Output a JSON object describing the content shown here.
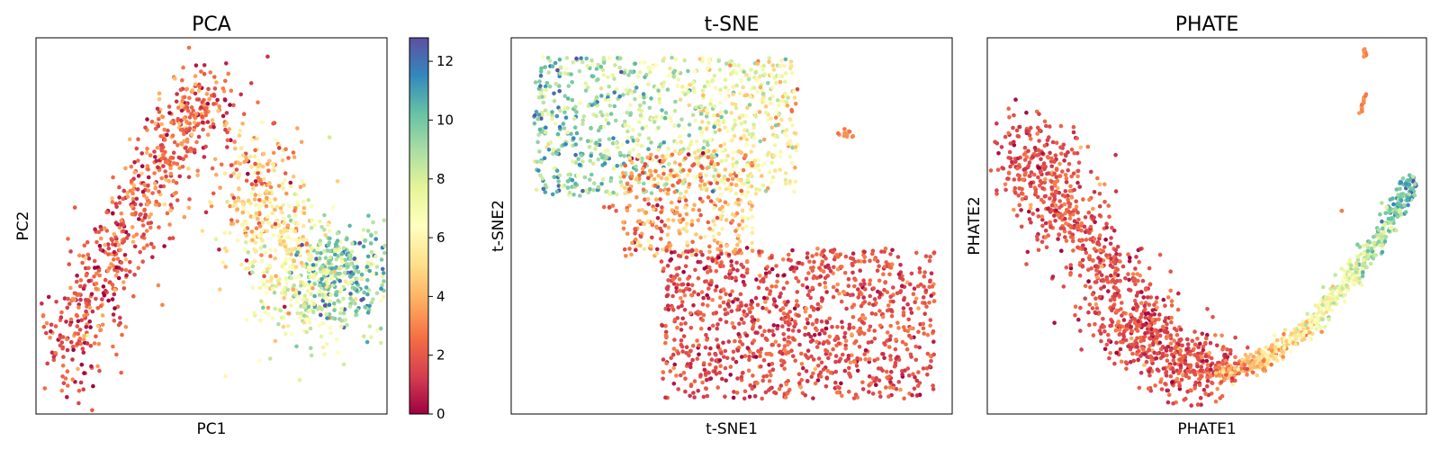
{
  "chart_data": [
    {
      "type": "scatter",
      "title": "PCA",
      "xlabel": "PC1",
      "ylabel": "PC2",
      "xticks": false,
      "yticks": false,
      "color_by": "continuous value (colorbar 0–12.8)",
      "clusters": [
        {
          "name": "left arm",
          "n": 700,
          "seed": 11,
          "curve": [
            [
              0.07,
              0.9
            ],
            [
              0.18,
              0.66
            ],
            [
              0.3,
              0.43
            ],
            [
              0.42,
              0.23
            ],
            [
              0.5,
              0.14
            ]
          ],
          "spread": 0.05,
          "cstart": 1.8,
          "cend": 2.5,
          "cjit": 1.2
        },
        {
          "name": "right lobe",
          "n": 900,
          "seed": 23,
          "curve": [
            [
              0.62,
              0.3
            ],
            [
              0.68,
              0.52
            ],
            [
              0.76,
              0.7
            ],
            [
              0.86,
              0.62
            ],
            [
              0.95,
              0.64
            ]
          ],
          "spread": 0.07,
          "cstart": 3.5,
          "cend": 10.5,
          "cjit": 1.6
        }
      ],
      "outliers": [
        [
          0.66,
          0.05,
          1.0
        ],
        [
          0.36,
          0.71,
          3.0
        ],
        [
          0.54,
          0.9,
          6.0
        ]
      ]
    },
    {
      "type": "scatter",
      "title": "t-SNE",
      "xlabel": "t-SNE1",
      "ylabel": "t-SNE2",
      "xticks": false,
      "yticks": false,
      "color_by": "continuous value (colorbar 0–12.8)",
      "clusters": [
        {
          "name": "upper cloud",
          "n": 900,
          "seed": 37,
          "box": [
            0.05,
            0.05,
            0.65,
            0.42
          ],
          "cleft": 10.0,
          "cright": 6.0,
          "cjit": 1.6
        },
        {
          "name": "middle band",
          "n": 350,
          "seed": 41,
          "box": [
            0.25,
            0.3,
            0.55,
            0.58
          ],
          "cleft": 3.0,
          "cright": 4.5,
          "cjit": 1.5
        },
        {
          "name": "lower cloud",
          "n": 1100,
          "seed": 53,
          "box": [
            0.34,
            0.56,
            0.96,
            0.96
          ],
          "cleft": 1.6,
          "cright": 1.9,
          "cjit": 0.8
        }
      ],
      "blobs": [
        [
          0.76,
          0.255,
          3.0,
          12
        ],
        [
          0.23,
          0.45,
          2.0,
          6
        ]
      ]
    },
    {
      "type": "scatter",
      "title": "PHATE",
      "xlabel": "PHATE1",
      "ylabel": "PHATE2",
      "xticks": false,
      "yticks": false,
      "color_by": "continuous value (colorbar 0–12.8)",
      "clusters": [
        {
          "name": "left branch",
          "n": 1100,
          "seed": 61,
          "curve": [
            [
              0.08,
              0.28
            ],
            [
              0.15,
              0.4
            ],
            [
              0.25,
              0.58
            ],
            [
              0.33,
              0.76
            ],
            [
              0.4,
              0.84
            ],
            [
              0.52,
              0.9
            ]
          ],
          "spread": 0.05,
          "cstart": 1.8,
          "cend": 1.8,
          "cjit": 0.8
        },
        {
          "name": "right branch",
          "n": 700,
          "seed": 73,
          "curve": [
            [
              0.52,
              0.9
            ],
            [
              0.62,
              0.86
            ],
            [
              0.72,
              0.78
            ],
            [
              0.82,
              0.65
            ],
            [
              0.9,
              0.52
            ],
            [
              0.97,
              0.38
            ]
          ],
          "spread": 0.012,
          "cstart": 3.0,
          "cend": 10.5,
          "cjit": 1.2
        }
      ],
      "streaks": [
        [
          0.86,
          0.05,
          0.86,
          0.03,
          3.0,
          10
        ],
        [
          0.85,
          0.2,
          0.86,
          0.15,
          3.0,
          12
        ],
        [
          0.81,
          0.46,
          0.81,
          0.46,
          3.0,
          2
        ]
      ]
    }
  ],
  "colorbar": {
    "min": 0,
    "max": 12.8,
    "ticks": [
      "0",
      "2",
      "4",
      "6",
      "8",
      "10",
      "12"
    ],
    "colormap": "Spectral"
  }
}
